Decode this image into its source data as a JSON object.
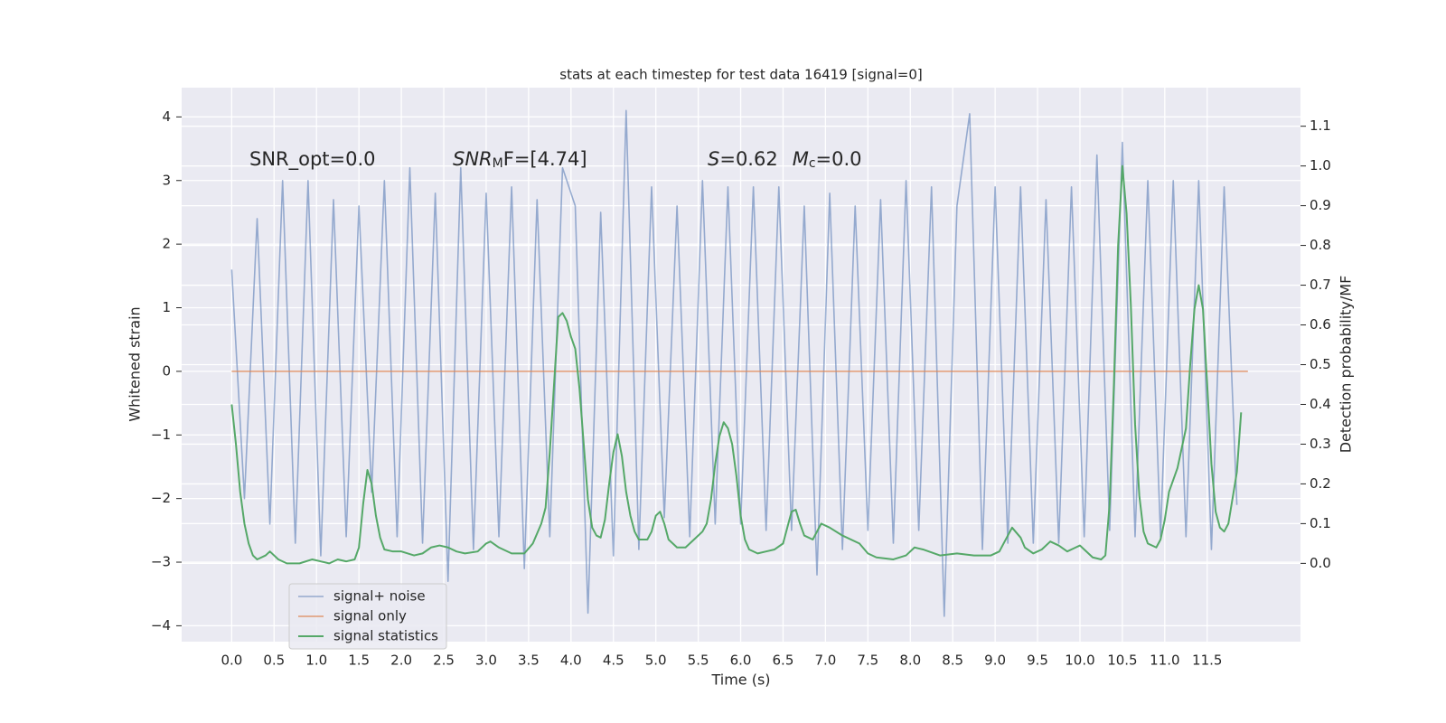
{
  "chart_data": {
    "type": "line",
    "title": "stats at each timestep for test data 16419 [signal=0]",
    "x_label": "Time (s)",
    "y_label": "Whitened strain",
    "y2_label": "Detection probability/MF",
    "annotations": [
      [
        "SNR_opt=0.0"
      ],
      [
        "SNR",
        "M",
        "F=[4.74]"
      ],
      [
        "S",
        "=0.62",
        "M",
        "c",
        "=0.0"
      ]
    ],
    "grid": true,
    "xlim": [
      -0.59,
      12.6
    ],
    "ylim": [
      -4.25,
      4.46
    ],
    "y2lim": [
      -0.197,
      1.197
    ],
    "xticks": [
      {
        "value": 0,
        "label": "0.0"
      },
      0.5,
      {
        "value": 1,
        "label": "1.0"
      },
      1.5,
      {
        "value": 2,
        "label": "2.0"
      },
      2.5,
      {
        "value": 3,
        "label": "3.0"
      },
      3.5,
      {
        "value": 4,
        "label": "4.0"
      },
      4.5,
      {
        "value": 5,
        "label": "5.0"
      },
      5.5,
      {
        "value": 6,
        "label": "6.0"
      },
      6.5,
      {
        "value": 7,
        "label": "7.0"
      },
      7.5,
      {
        "value": 8,
        "label": "8.0"
      },
      8.5,
      {
        "value": 9,
        "label": "9.0"
      },
      9.5,
      {
        "value": 10,
        "label": "10.0"
      },
      10.5,
      {
        "value": 11,
        "label": "11.0"
      },
      11.5
    ],
    "yticks": [
      {
        "value": -4,
        "label": "−4"
      },
      {
        "value": -3,
        "label": "−3"
      },
      {
        "value": -2,
        "label": "−2"
      },
      {
        "value": -1,
        "label": "−1"
      },
      0,
      1,
      2,
      3,
      4
    ],
    "y2ticks": [
      {
        "value": 0,
        "label": "0.0"
      },
      0.1,
      0.2,
      0.3,
      0.4,
      0.5,
      0.6,
      0.7,
      0.8,
      0.9,
      {
        "value": 1,
        "label": "1.0"
      },
      1.1
    ],
    "series": [
      {
        "name": "signal+ noise",
        "color": "#4c72b0",
        "x": [
          0,
          0.15,
          0.3,
          0.45,
          0.6,
          0.75,
          0.9,
          1.05,
          1.2,
          1.35,
          1.5,
          1.65,
          1.8,
          1.95,
          2.1,
          2.25,
          2.4,
          2.55,
          2.7,
          2.85,
          3,
          3.15,
          3.3,
          3.45,
          3.6,
          3.75,
          3.9,
          4.05,
          4.2,
          4.35,
          4.5,
          4.65,
          4.8,
          4.95,
          5.1,
          5.25,
          5.4,
          5.55,
          5.7,
          5.85,
          6,
          6.15,
          6.3,
          6.45,
          6.6,
          6.75,
          6.9,
          7.05,
          7.2,
          7.35,
          7.5,
          7.65,
          7.8,
          7.95,
          8.1,
          8.25,
          8.4,
          8.55,
          8.7,
          8.85,
          9,
          9.15,
          9.3,
          9.45,
          9.6,
          9.75,
          9.9,
          10.05,
          10.2,
          10.35,
          10.5,
          10.65,
          10.8,
          10.95,
          11.1,
          11.25,
          11.4,
          11.55,
          11.7,
          11.85
        ],
        "values": [
          1.6,
          -2.0,
          2.4,
          -2.4,
          3.0,
          -2.7,
          3.0,
          -2.9,
          2.7,
          -2.6,
          2.6,
          -1.9,
          3.0,
          -2.6,
          3.2,
          -2.7,
          2.8,
          -3.3,
          3.2,
          -2.8,
          2.8,
          -2.6,
          2.9,
          -3.1,
          2.7,
          -2.6,
          3.2,
          2.6,
          -3.8,
          2.5,
          -2.9,
          4.1,
          -2.8,
          2.9,
          -2.3,
          2.6,
          -2.6,
          3.0,
          -2.4,
          2.9,
          -2.4,
          2.9,
          -2.5,
          2.9,
          -2.5,
          2.6,
          -3.2,
          2.8,
          -2.8,
          2.6,
          -2.5,
          2.7,
          -2.7,
          3.0,
          -2.5,
          2.9,
          -3.85,
          2.6,
          4.05,
          -2.8,
          2.9,
          -2.7,
          2.9,
          -2.7,
          2.7,
          -2.7,
          2.9,
          -2.6,
          3.4,
          -2.5,
          3.6,
          -2.6,
          3.0,
          -2.6,
          3.0,
          -2.6,
          3.0,
          -2.8,
          2.9,
          -2.1
        ]
      },
      {
        "name": "signal only",
        "color": "#dd8452",
        "x": [
          0,
          11.98
        ],
        "values": [
          0,
          0
        ]
      },
      {
        "name": "signal statistics",
        "color": "#55a868",
        "axis": "y2",
        "x": [
          0,
          0.05,
          0.1,
          0.15,
          0.2,
          0.25,
          0.3,
          0.4,
          0.45,
          0.55,
          0.65,
          0.8,
          0.95,
          1.05,
          1.15,
          1.25,
          1.35,
          1.45,
          1.5,
          1.55,
          1.6,
          1.65,
          1.7,
          1.75,
          1.8,
          1.9,
          2,
          2.15,
          2.25,
          2.35,
          2.45,
          2.55,
          2.65,
          2.75,
          2.9,
          3,
          3.05,
          3.15,
          3.3,
          3.45,
          3.55,
          3.65,
          3.7,
          3.75,
          3.8,
          3.85,
          3.9,
          3.95,
          4,
          4.05,
          4.1,
          4.15,
          4.2,
          4.25,
          4.3,
          4.35,
          4.4,
          4.45,
          4.5,
          4.55,
          4.6,
          4.65,
          4.7,
          4.75,
          4.8,
          4.9,
          4.95,
          5,
          5.05,
          5.1,
          5.15,
          5.25,
          5.35,
          5.45,
          5.55,
          5.6,
          5.65,
          5.7,
          5.75,
          5.8,
          5.85,
          5.9,
          5.95,
          6,
          6.05,
          6.1,
          6.2,
          6.3,
          6.4,
          6.5,
          6.55,
          6.6,
          6.65,
          6.7,
          6.75,
          6.85,
          6.95,
          7.05,
          7.2,
          7.4,
          7.5,
          7.6,
          7.8,
          7.95,
          8.05,
          8.15,
          8.35,
          8.55,
          8.75,
          8.95,
          9.05,
          9.15,
          9.2,
          9.3,
          9.35,
          9.45,
          9.55,
          9.65,
          9.75,
          9.85,
          9.95,
          10,
          10.05,
          10.15,
          10.25,
          10.3,
          10.35,
          10.4,
          10.45,
          10.5,
          10.55,
          10.6,
          10.65,
          10.7,
          10.75,
          10.8,
          10.9,
          10.95,
          11,
          11.05,
          11.15,
          11.25,
          11.3,
          11.35,
          11.4,
          11.45,
          11.5,
          11.55,
          11.6,
          11.65,
          11.7,
          11.75,
          11.85,
          11.9
        ],
        "values": [
          0.4,
          0.3,
          0.18,
          0.1,
          0.05,
          0.02,
          0.01,
          0.02,
          0.03,
          0.01,
          0,
          0,
          0.01,
          0.005,
          0,
          0.01,
          0.005,
          0.01,
          0.04,
          0.15,
          0.235,
          0.2,
          0.12,
          0.065,
          0.035,
          0.03,
          0.03,
          0.02,
          0.025,
          0.04,
          0.045,
          0.04,
          0.03,
          0.025,
          0.03,
          0.05,
          0.055,
          0.04,
          0.025,
          0.025,
          0.05,
          0.1,
          0.14,
          0.28,
          0.45,
          0.62,
          0.63,
          0.61,
          0.57,
          0.54,
          0.44,
          0.3,
          0.16,
          0.09,
          0.07,
          0.065,
          0.11,
          0.2,
          0.28,
          0.325,
          0.27,
          0.18,
          0.12,
          0.08,
          0.06,
          0.06,
          0.08,
          0.12,
          0.13,
          0.1,
          0.06,
          0.04,
          0.04,
          0.06,
          0.08,
          0.1,
          0.16,
          0.25,
          0.32,
          0.355,
          0.34,
          0.3,
          0.22,
          0.12,
          0.06,
          0.035,
          0.025,
          0.03,
          0.035,
          0.05,
          0.09,
          0.13,
          0.135,
          0.1,
          0.07,
          0.06,
          0.1,
          0.09,
          0.07,
          0.05,
          0.025,
          0.015,
          0.01,
          0.02,
          0.04,
          0.035,
          0.02,
          0.025,
          0.02,
          0.02,
          0.03,
          0.07,
          0.09,
          0.065,
          0.04,
          0.025,
          0.035,
          0.055,
          0.045,
          0.03,
          0.04,
          0.045,
          0.035,
          0.015,
          0.01,
          0.02,
          0.15,
          0.45,
          0.8,
          1.0,
          0.88,
          0.65,
          0.35,
          0.17,
          0.08,
          0.05,
          0.04,
          0.06,
          0.11,
          0.18,
          0.24,
          0.34,
          0.5,
          0.64,
          0.7,
          0.64,
          0.45,
          0.25,
          0.13,
          0.09,
          0.08,
          0.1,
          0.23,
          0.38
        ]
      }
    ]
  }
}
